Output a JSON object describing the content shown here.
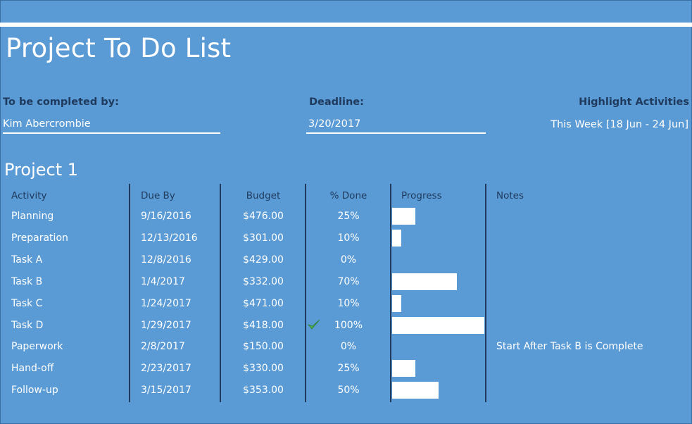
{
  "title": "Project To Do List",
  "completed_by": {
    "label": "To be completed by:",
    "value": "Kim Abercrombie"
  },
  "deadline": {
    "label": "Deadline:",
    "value": "3/20/2017"
  },
  "highlight": {
    "label": "Highlight Activities",
    "value": "This Week [18 Jun - 24 Jun]"
  },
  "project": {
    "name": "Project 1",
    "headers": {
      "activity": "Activity",
      "due_by": "Due By",
      "budget": "Budget",
      "percent_done": "% Done",
      "progress": "Progress",
      "notes": "Notes"
    },
    "rows": [
      {
        "activity": "Planning",
        "due_by": "9/16/2016",
        "budget": "$476.00",
        "percent_done": "25%",
        "progress": 0.25,
        "notes": ""
      },
      {
        "activity": "Preparation",
        "due_by": "12/13/2016",
        "budget": "$301.00",
        "percent_done": "10%",
        "progress": 0.1,
        "notes": ""
      },
      {
        "activity": "Task A",
        "due_by": "12/8/2016",
        "budget": "$429.00",
        "percent_done": "0%",
        "progress": 0,
        "notes": ""
      },
      {
        "activity": "Task B",
        "due_by": "1/4/2017",
        "budget": "$332.00",
        "percent_done": "70%",
        "progress": 0.7,
        "notes": ""
      },
      {
        "activity": "Task C",
        "due_by": "1/24/2017",
        "budget": "$471.00",
        "percent_done": "10%",
        "progress": 0.1,
        "notes": ""
      },
      {
        "activity": "Task D",
        "due_by": "1/29/2017",
        "budget": "$418.00",
        "percent_done": "100%",
        "progress": 1.0,
        "complete_icon": "check-icon",
        "notes": ""
      },
      {
        "activity": "Paperwork",
        "due_by": "2/8/2017",
        "budget": "$150.00",
        "percent_done": "0%",
        "progress": 0,
        "notes": "Start After Task B is Complete"
      },
      {
        "activity": "Hand-off",
        "due_by": "2/23/2017",
        "budget": "$330.00",
        "percent_done": "25%",
        "progress": 0.25,
        "notes": ""
      },
      {
        "activity": "Follow-up",
        "due_by": "3/15/2017",
        "budget": "$353.00",
        "percent_done": "50%",
        "progress": 0.5,
        "notes": ""
      }
    ]
  },
  "colors": {
    "background": "#5b9bd5",
    "header_text": "#1f3a5c",
    "check": "#4caf50"
  }
}
